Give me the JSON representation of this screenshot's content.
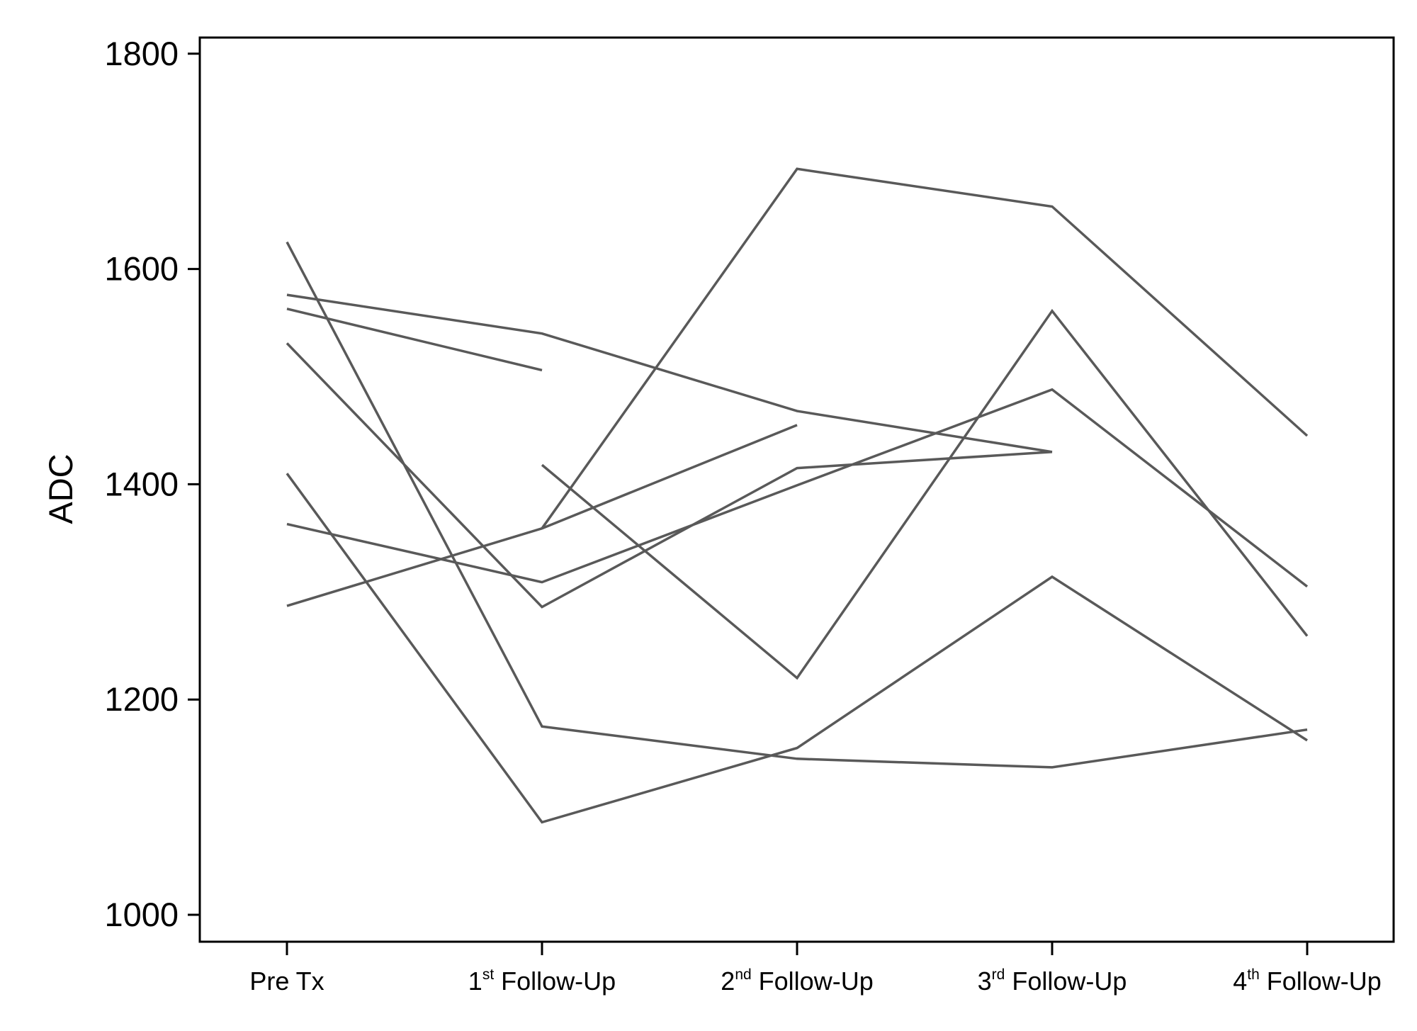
{
  "chart_data": {
    "type": "line",
    "ylabel": "ADC",
    "xlabel": "",
    "ylim": [
      975,
      1815
    ],
    "yticks": [
      1000,
      1200,
      1400,
      1600,
      1800
    ],
    "grid": false,
    "legend": "none",
    "line_color": "#595959",
    "categories": [
      {
        "base": "Pre Tx",
        "sup": "",
        "rest": ""
      },
      {
        "base": "1",
        "sup": "st",
        "rest": " Follow-Up"
      },
      {
        "base": "2",
        "sup": "nd",
        "rest": " Follow-Up"
      },
      {
        "base": "3",
        "sup": "rd",
        "rest": " Follow-Up"
      },
      {
        "base": "4",
        "sup": "th",
        "rest": " Follow-Up"
      }
    ],
    "series": [
      {
        "points": [
          [
            0,
            1625
          ],
          [
            1,
            1175
          ],
          [
            2,
            1145
          ],
          [
            3,
            1137
          ],
          [
            4,
            1172
          ]
        ]
      },
      {
        "points": [
          [
            0,
            1576
          ],
          [
            1,
            1540
          ],
          [
            2,
            1468
          ],
          [
            3,
            1430
          ]
        ]
      },
      {
        "points": [
          [
            0,
            1563
          ],
          [
            1,
            1506
          ]
        ]
      },
      {
        "points": [
          [
            0,
            1531
          ],
          [
            1,
            1286
          ],
          [
            2,
            1415
          ],
          [
            3,
            1430
          ]
        ]
      },
      {
        "points": [
          [
            0,
            1410
          ],
          [
            1,
            1086
          ],
          [
            2,
            1155
          ],
          [
            3,
            1314
          ],
          [
            4,
            1162
          ]
        ]
      },
      {
        "points": [
          [
            0,
            1363
          ],
          [
            1,
            1309
          ],
          [
            2,
            1399
          ],
          [
            3,
            1488
          ],
          [
            4,
            1305
          ]
        ]
      },
      {
        "points": [
          [
            0,
            1287
          ],
          [
            1,
            1359
          ],
          [
            2,
            1455
          ]
        ]
      },
      {
        "points": [
          [
            1,
            1359
          ],
          [
            2,
            1693
          ],
          [
            3,
            1658
          ],
          [
            4,
            1445
          ]
        ]
      },
      {
        "points": [
          [
            1,
            1418
          ],
          [
            2,
            1220
          ],
          [
            3,
            1561
          ],
          [
            4,
            1259
          ]
        ]
      }
    ]
  }
}
